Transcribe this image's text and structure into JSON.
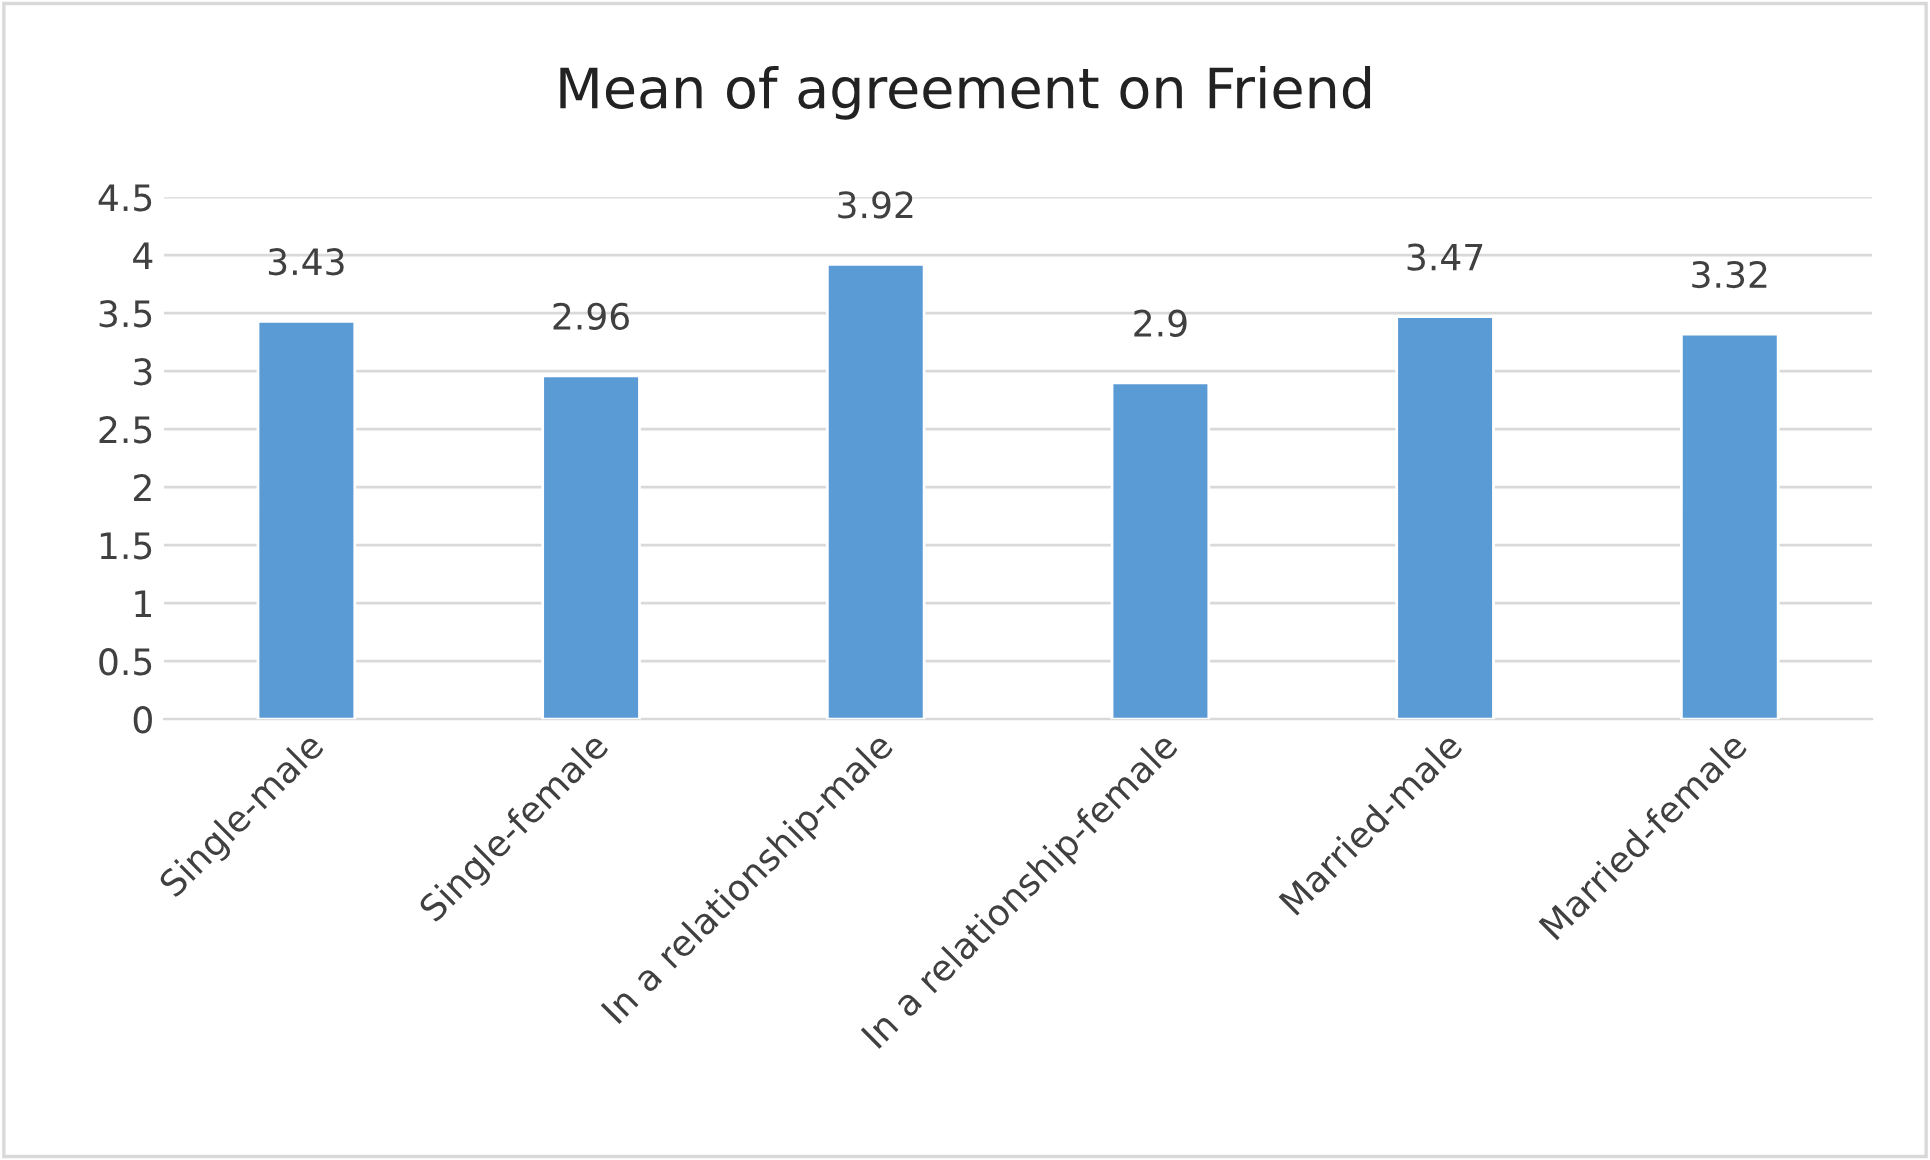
{
  "chart_data": {
    "type": "bar",
    "title": "Mean of agreement on Friend",
    "categories": [
      "Single-male",
      "Single-female",
      "In a relationship-male",
      "In a relationship-female",
      "Married-male",
      "Married-female"
    ],
    "values": [
      3.43,
      2.96,
      3.92,
      2.9,
      3.47,
      3.32
    ],
    "color": "#5b9bd5",
    "ylim": [
      0,
      4.5
    ],
    "yticks": [
      0,
      0.5,
      1,
      1.5,
      2,
      2.5,
      3,
      3.5,
      4,
      4.5
    ],
    "grid": "y",
    "data_labels": true
  }
}
